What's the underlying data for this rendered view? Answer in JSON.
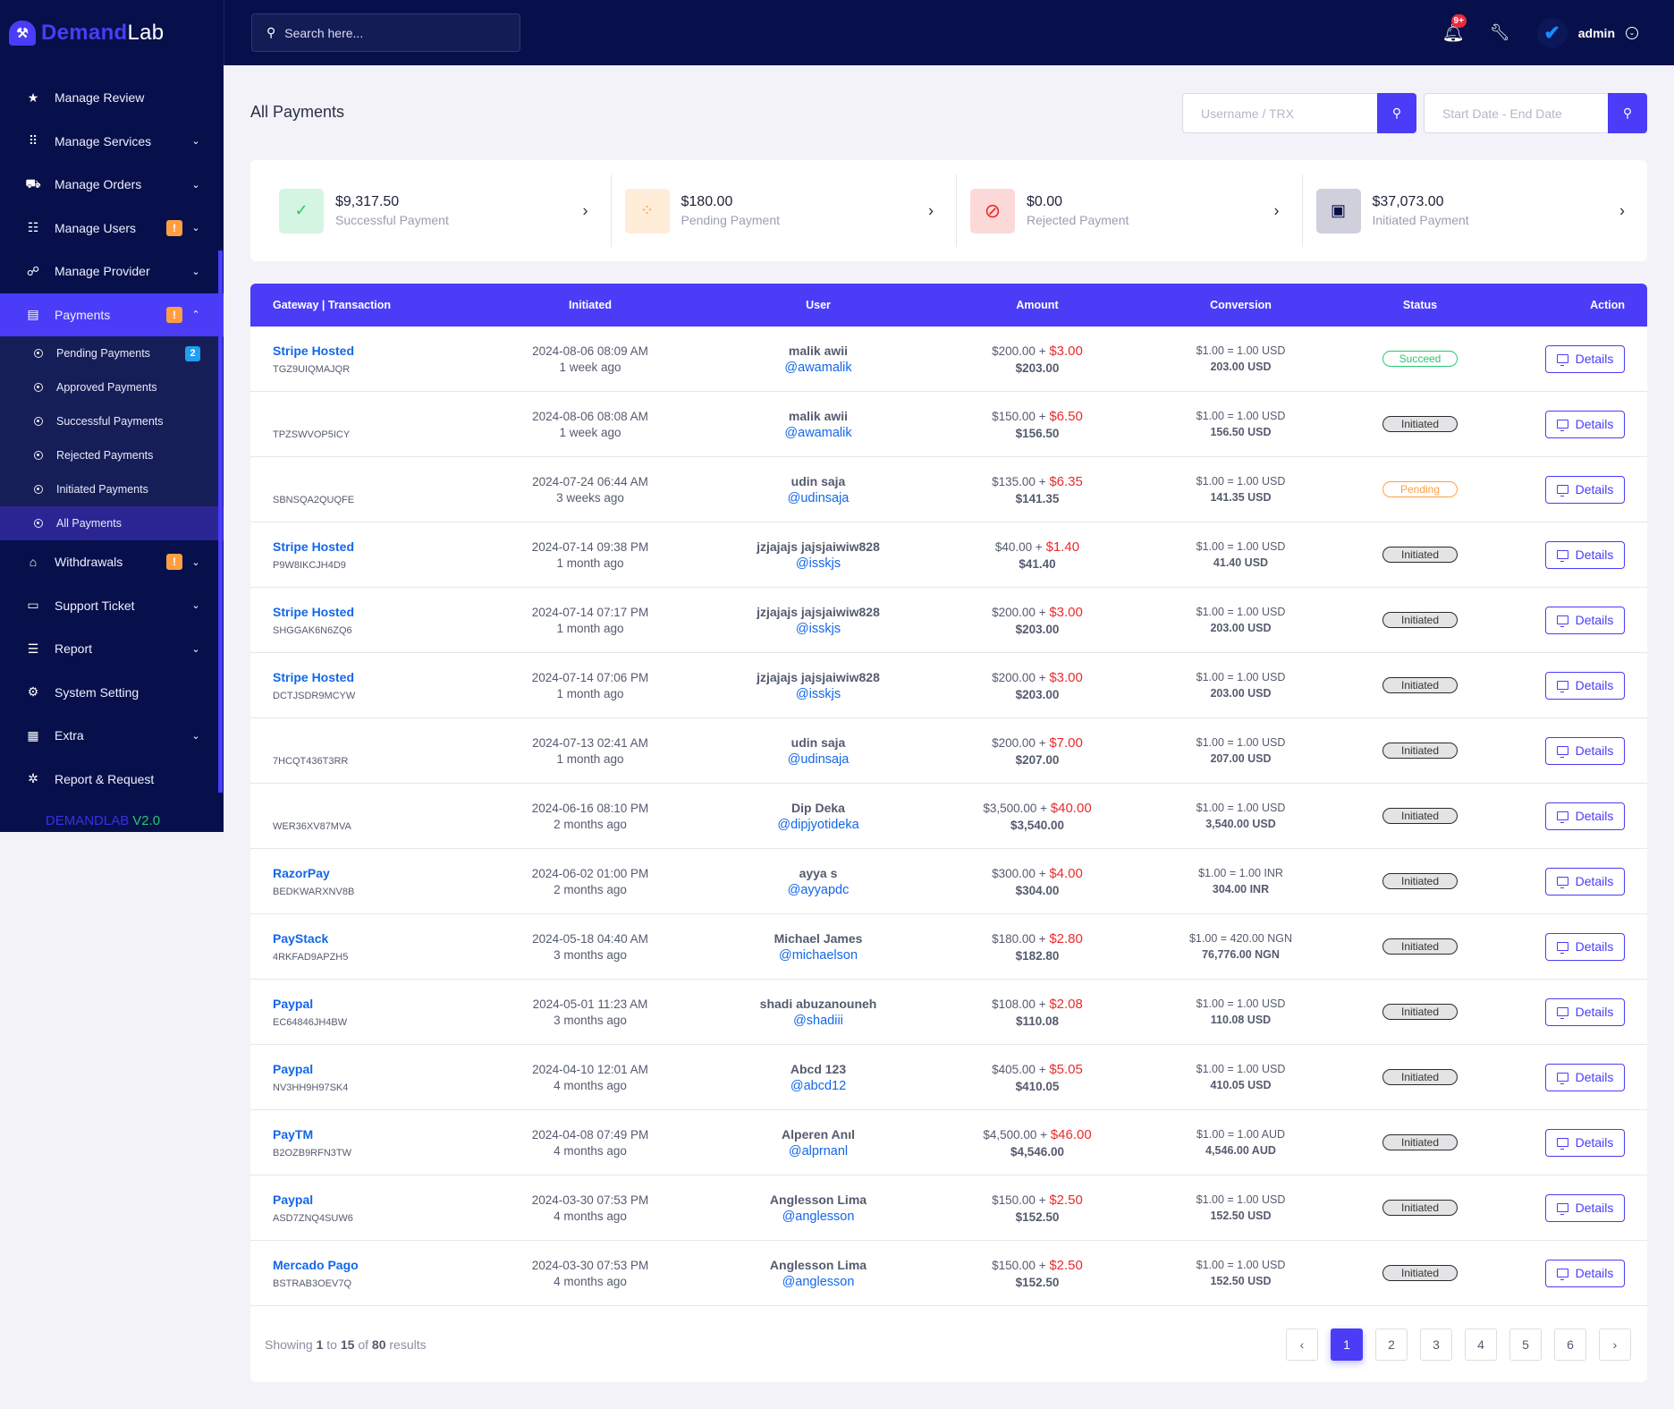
{
  "brand": {
    "part1": "Demand",
    "part2": "Lab",
    "version_name": "DEMANDLAB",
    "version_num": "V2.0"
  },
  "header": {
    "search_placeholder": "Search here...",
    "notification_badge": "9+",
    "user_name": "admin"
  },
  "sidebar": {
    "items": [
      {
        "label": "Manage Review",
        "icon": "star"
      },
      {
        "label": "Manage Services",
        "icon": "grid"
      },
      {
        "label": "Manage Orders",
        "icon": "truck"
      },
      {
        "label": "Manage Users",
        "icon": "users",
        "badge": "!"
      },
      {
        "label": "Manage Provider",
        "icon": "providers"
      },
      {
        "label": "Payments",
        "icon": "invoice",
        "badge": "!"
      },
      {
        "label": "Withdrawals",
        "icon": "bank",
        "badge": "!"
      },
      {
        "label": "Support Ticket",
        "icon": "ticket"
      },
      {
        "label": "Report",
        "icon": "list"
      },
      {
        "label": "System Setting",
        "icon": "settings"
      },
      {
        "label": "Extra",
        "icon": "server"
      },
      {
        "label": "Report & Request",
        "icon": "bug"
      }
    ],
    "payments_sub": [
      {
        "label": "Pending Payments",
        "count": "2"
      },
      {
        "label": "Approved Payments"
      },
      {
        "label": "Successful Payments"
      },
      {
        "label": "Rejected Payments"
      },
      {
        "label": "Initiated Payments"
      },
      {
        "label": "All Payments"
      }
    ]
  },
  "page": {
    "title": "All Payments",
    "filter_user_placeholder": "Username / TRX",
    "filter_date_placeholder": "Start Date - End Date"
  },
  "summary": [
    {
      "amount": "$9,317.50",
      "label": "Successful Payment",
      "color": "#28c76f",
      "bg": "#d5f5e3"
    },
    {
      "amount": "$180.00",
      "label": "Pending Payment",
      "color": "#ff9f43",
      "bg": "#ffecd9"
    },
    {
      "amount": "$0.00",
      "label": "Rejected Payment",
      "color": "#ea2b2b",
      "bg": "#fcd9d9"
    },
    {
      "amount": "$37,073.00",
      "label": "Initiated Payment",
      "color": "#07104a",
      "bg": "#cfd0dc"
    }
  ],
  "table": {
    "headers": [
      "Gateway | Transaction",
      "Initiated",
      "User",
      "Amount",
      "Conversion",
      "Status",
      "Action"
    ],
    "action_label": "Details",
    "rows": [
      {
        "gateway": "Stripe Hosted",
        "trx": "TGZ9UIQMAJQR",
        "date": "2024-08-06 08:09 AM",
        "ago": "1 week ago",
        "name": "malik awii",
        "handle": "@awamalik",
        "base": "$200.00",
        "fee": "$3.00",
        "total": "$203.00",
        "rate": "$1.00 = 1.00 USD",
        "converted": "203.00 USD",
        "status": "Succeed"
      },
      {
        "gateway": "",
        "trx": "TPZSWVOP5ICY",
        "date": "2024-08-06 08:08 AM",
        "ago": "1 week ago",
        "name": "malik awii",
        "handle": "@awamalik",
        "base": "$150.00",
        "fee": "$6.50",
        "total": "$156.50",
        "rate": "$1.00 = 1.00 USD",
        "converted": "156.50 USD",
        "status": "Initiated"
      },
      {
        "gateway": "",
        "trx": "SBNSQA2QUQFE",
        "date": "2024-07-24 06:44 AM",
        "ago": "3 weeks ago",
        "name": "udin saja",
        "handle": "@udinsaja",
        "base": "$135.00",
        "fee": "$6.35",
        "total": "$141.35",
        "rate": "$1.00 = 1.00 USD",
        "converted": "141.35 USD",
        "status": "Pending"
      },
      {
        "gateway": "Stripe Hosted",
        "trx": "P9W8IKCJH4D9",
        "date": "2024-07-14 09:38 PM",
        "ago": "1 month ago",
        "name": "jzjajajs jajsjaiwiw828",
        "handle": "@isskjs",
        "base": "$40.00",
        "fee": "$1.40",
        "total": "$41.40",
        "rate": "$1.00 = 1.00 USD",
        "converted": "41.40 USD",
        "status": "Initiated"
      },
      {
        "gateway": "Stripe Hosted",
        "trx": "SHGGAK6N6ZQ6",
        "date": "2024-07-14 07:17 PM",
        "ago": "1 month ago",
        "name": "jzjajajs jajsjaiwiw828",
        "handle": "@isskjs",
        "base": "$200.00",
        "fee": "$3.00",
        "total": "$203.00",
        "rate": "$1.00 = 1.00 USD",
        "converted": "203.00 USD",
        "status": "Initiated"
      },
      {
        "gateway": "Stripe Hosted",
        "trx": "DCTJSDR9MCYW",
        "date": "2024-07-14 07:06 PM",
        "ago": "1 month ago",
        "name": "jzjajajs jajsjaiwiw828",
        "handle": "@isskjs",
        "base": "$200.00",
        "fee": "$3.00",
        "total": "$203.00",
        "rate": "$1.00 = 1.00 USD",
        "converted": "203.00 USD",
        "status": "Initiated"
      },
      {
        "gateway": "",
        "trx": "7HCQT436T3RR",
        "date": "2024-07-13 02:41 AM",
        "ago": "1 month ago",
        "name": "udin saja",
        "handle": "@udinsaja",
        "base": "$200.00",
        "fee": "$7.00",
        "total": "$207.00",
        "rate": "$1.00 = 1.00 USD",
        "converted": "207.00 USD",
        "status": "Initiated"
      },
      {
        "gateway": "",
        "trx": "WER36XV87MVA",
        "date": "2024-06-16 08:10 PM",
        "ago": "2 months ago",
        "name": "Dip Deka",
        "handle": "@dipjyotideka",
        "base": "$3,500.00",
        "fee": "$40.00",
        "total": "$3,540.00",
        "rate": "$1.00 = 1.00 USD",
        "converted": "3,540.00 USD",
        "status": "Initiated"
      },
      {
        "gateway": "RazorPay",
        "trx": "BEDKWARXNV8B",
        "date": "2024-06-02 01:00 PM",
        "ago": "2 months ago",
        "name": "ayya s",
        "handle": "@ayyapdc",
        "base": "$300.00",
        "fee": "$4.00",
        "total": "$304.00",
        "rate": "$1.00 = 1.00 INR",
        "converted": "304.00 INR",
        "status": "Initiated"
      },
      {
        "gateway": "PayStack",
        "trx": "4RKFAD9APZH5",
        "date": "2024-05-18 04:40 AM",
        "ago": "3 months ago",
        "name": "Michael James",
        "handle": "@michaelson",
        "base": "$180.00",
        "fee": "$2.80",
        "total": "$182.80",
        "rate": "$1.00 = 420.00 NGN",
        "converted": "76,776.00 NGN",
        "status": "Initiated"
      },
      {
        "gateway": "Paypal",
        "trx": "EC64846JH4BW",
        "date": "2024-05-01 11:23 AM",
        "ago": "3 months ago",
        "name": "shadi abuzanouneh",
        "handle": "@shadiii",
        "base": "$108.00",
        "fee": "$2.08",
        "total": "$110.08",
        "rate": "$1.00 = 1.00 USD",
        "converted": "110.08 USD",
        "status": "Initiated"
      },
      {
        "gateway": "Paypal",
        "trx": "NV3HH9H97SK4",
        "date": "2024-04-10 12:01 AM",
        "ago": "4 months ago",
        "name": "Abcd 123",
        "handle": "@abcd12",
        "base": "$405.00",
        "fee": "$5.05",
        "total": "$410.05",
        "rate": "$1.00 = 1.00 USD",
        "converted": "410.05 USD",
        "status": "Initiated"
      },
      {
        "gateway": "PayTM",
        "trx": "B2OZB9RFN3TW",
        "date": "2024-04-08 07:49 PM",
        "ago": "4 months ago",
        "name": "Alperen Anıl",
        "handle": "@alprnanl",
        "base": "$4,500.00",
        "fee": "$46.00",
        "total": "$4,546.00",
        "rate": "$1.00 = 1.00 AUD",
        "converted": "4,546.00 AUD",
        "status": "Initiated"
      },
      {
        "gateway": "Paypal",
        "trx": "ASD7ZNQ4SUW6",
        "date": "2024-03-30 07:53 PM",
        "ago": "4 months ago",
        "name": "Anglesson Lima",
        "handle": "@anglesson",
        "base": "$150.00",
        "fee": "$2.50",
        "total": "$152.50",
        "rate": "$1.00 = 1.00 USD",
        "converted": "152.50 USD",
        "status": "Initiated"
      },
      {
        "gateway": "Mercado Pago",
        "trx": "BSTRAB3OEV7Q",
        "date": "2024-03-30 07:53 PM",
        "ago": "4 months ago",
        "name": "Anglesson Lima",
        "handle": "@anglesson",
        "base": "$150.00",
        "fee": "$2.50",
        "total": "$152.50",
        "rate": "$1.00 = 1.00 USD",
        "converted": "152.50 USD",
        "status": "Initiated"
      }
    ]
  },
  "pagination": {
    "showing_prefix": "Showing",
    "from": "1",
    "to_word": "to",
    "to": "15",
    "of_word": "of",
    "total": "80",
    "suffix": "results",
    "prev": "‹",
    "next": "›",
    "pages": [
      "1",
      "2",
      "3",
      "4",
      "5",
      "6"
    ],
    "current": "1"
  },
  "colors": {
    "accent": "#4a3cf7",
    "sidebar_bg": "#07104a",
    "link": "#1367e8",
    "fee": "#ea2b2b"
  }
}
